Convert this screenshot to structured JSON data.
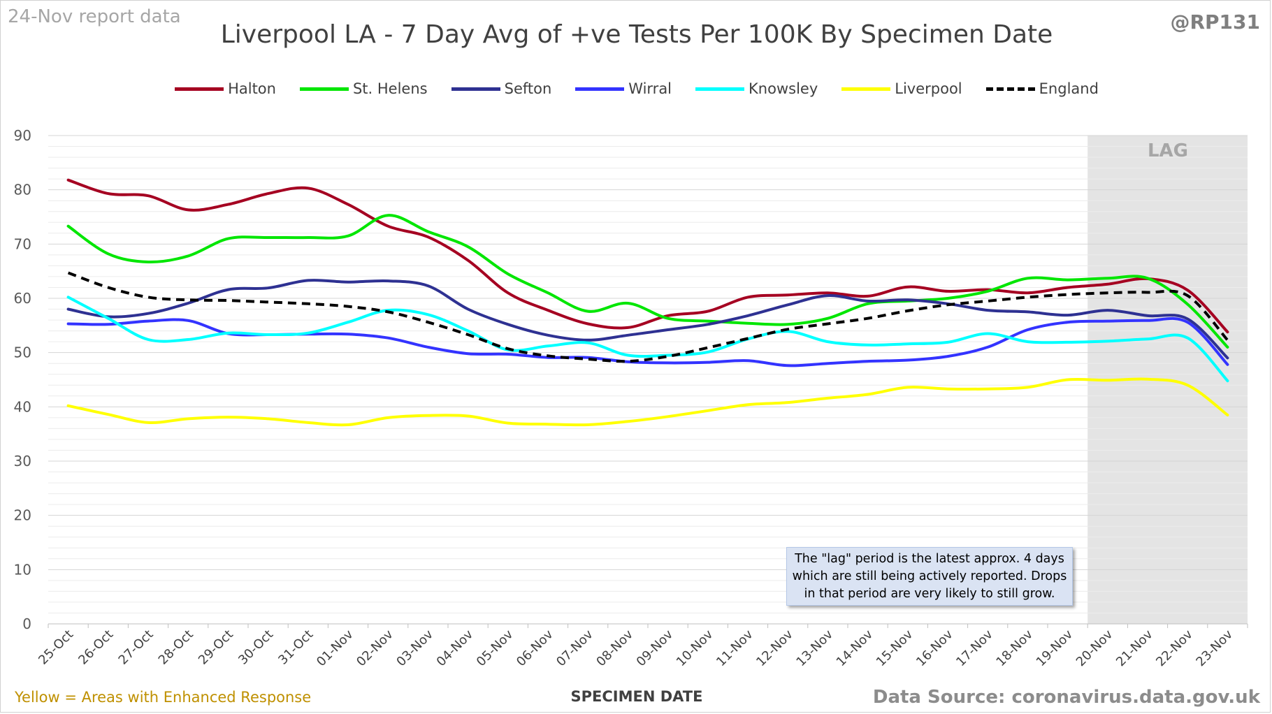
{
  "header": {
    "report_date": "24-Nov report data",
    "title": "Liverpool LA - 7 Day Avg of +ve Tests Per 100K By Specimen Date",
    "handle": "@RP131"
  },
  "footer": {
    "note": "Yellow = Areas with Enhanced Response",
    "source": "Data Source: coronavirus.data.gov.uk"
  },
  "lag_label": "LAG",
  "annotation": {
    "lines": [
      "The \"lag\" period is the latest approx. 4 days",
      "which are still being actively reported.  Drops",
      "in that period are very likely to still grow."
    ]
  },
  "chart_data": {
    "type": "line",
    "xlabel": "SPECIMEN DATE",
    "ylabel": "",
    "ylim": [
      0,
      90
    ],
    "yticks": [
      0,
      10,
      20,
      30,
      40,
      50,
      60,
      70,
      80,
      90
    ],
    "grid": "horizontal",
    "legend_position": "top",
    "lag_period": [
      "20-Nov",
      "23-Nov"
    ],
    "categories": [
      "25-Oct",
      "26-Oct",
      "27-Oct",
      "28-Oct",
      "29-Oct",
      "30-Oct",
      "31-Oct",
      "01-Nov",
      "02-Nov",
      "03-Nov",
      "04-Nov",
      "05-Nov",
      "06-Nov",
      "07-Nov",
      "08-Nov",
      "09-Nov",
      "10-Nov",
      "11-Nov",
      "12-Nov",
      "13-Nov",
      "14-Nov",
      "15-Nov",
      "16-Nov",
      "17-Nov",
      "18-Nov",
      "19-Nov",
      "20-Nov",
      "21-Nov",
      "22-Nov",
      "23-Nov"
    ],
    "series": [
      {
        "name": "Halton",
        "color": "#a50021",
        "style": "solid",
        "values": [
          81.8,
          79.3,
          78.9,
          76.3,
          77.3,
          79.3,
          80.3,
          77.3,
          73.3,
          71.3,
          67.0,
          61.0,
          57.8,
          55.3,
          54.6,
          56.8,
          57.6,
          60.2,
          60.6,
          61.0,
          60.4,
          62.1,
          61.3,
          61.6,
          61.0,
          62.0,
          62.6,
          63.6,
          61.5,
          53.8
        ]
      },
      {
        "name": "St. Helens",
        "color": "#00e600",
        "style": "solid",
        "values": [
          73.3,
          68.2,
          66.7,
          67.8,
          71.0,
          71.2,
          71.2,
          71.5,
          75.3,
          72.3,
          69.5,
          64.5,
          61.0,
          57.6,
          59.1,
          56.3,
          55.8,
          55.4,
          55.2,
          56.3,
          59.0,
          59.5,
          60.0,
          61.3,
          63.7,
          63.4,
          63.7,
          63.7,
          58.9,
          51.0
        ]
      },
      {
        "name": "Sefton",
        "color": "#2e3192",
        "style": "solid",
        "values": [
          58.0,
          56.6,
          57.2,
          59.1,
          61.6,
          61.9,
          63.3,
          63.0,
          63.2,
          62.3,
          58.0,
          55.2,
          53.2,
          52.3,
          53.2,
          54.2,
          55.2,
          56.8,
          58.8,
          60.5,
          59.5,
          59.7,
          59.0,
          57.8,
          57.5,
          56.9,
          57.8,
          56.8,
          56.2,
          49.0
        ]
      },
      {
        "name": "Wirral",
        "color": "#3333ff",
        "style": "solid",
        "values": [
          55.3,
          55.2,
          55.8,
          55.9,
          53.5,
          53.3,
          53.4,
          53.4,
          52.7,
          51.0,
          49.8,
          49.7,
          49.1,
          49.1,
          48.3,
          48.1,
          48.2,
          48.5,
          47.6,
          48.0,
          48.4,
          48.6,
          49.3,
          51.0,
          54.2,
          55.6,
          55.8,
          55.9,
          55.6,
          47.8
        ]
      },
      {
        "name": "Knowsley",
        "color": "#00ffff",
        "style": "solid",
        "values": [
          60.2,
          56.3,
          52.4,
          52.4,
          53.6,
          53.3,
          53.6,
          55.6,
          57.8,
          57.0,
          54.0,
          50.5,
          51.2,
          51.8,
          49.5,
          49.5,
          50.1,
          52.5,
          53.9,
          52.0,
          51.4,
          51.6,
          51.9,
          53.5,
          52.0,
          51.9,
          52.1,
          52.5,
          52.7,
          44.8
        ]
      },
      {
        "name": "Liverpool",
        "color": "#ffff00",
        "style": "solid",
        "values": [
          40.2,
          38.6,
          37.1,
          37.8,
          38.1,
          37.8,
          37.1,
          36.7,
          38.0,
          38.4,
          38.3,
          37.0,
          36.8,
          36.7,
          37.3,
          38.2,
          39.3,
          40.4,
          40.8,
          41.6,
          42.3,
          43.6,
          43.3,
          43.3,
          43.6,
          45.0,
          44.9,
          45.1,
          44.0,
          38.5
        ]
      },
      {
        "name": "England",
        "color": "#000000",
        "style": "dashed",
        "values": [
          64.7,
          62.0,
          60.2,
          59.7,
          59.6,
          59.3,
          59.0,
          58.5,
          57.5,
          55.6,
          53.3,
          50.7,
          49.4,
          48.8,
          48.4,
          49.3,
          50.9,
          52.6,
          54.3,
          55.3,
          56.3,
          57.7,
          58.8,
          59.5,
          60.2,
          60.7,
          61.0,
          61.1,
          60.5,
          52.3
        ]
      }
    ]
  }
}
